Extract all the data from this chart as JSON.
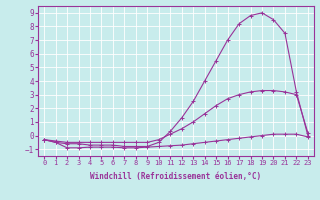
{
  "xlabel": "Windchill (Refroidissement éolien,°C)",
  "bg_color": "#c8ecec",
  "line_color": "#993399",
  "grid_color": "#ffffff",
  "x_values": [
    0,
    1,
    2,
    3,
    4,
    5,
    6,
    7,
    8,
    9,
    10,
    11,
    12,
    13,
    14,
    15,
    16,
    17,
    18,
    19,
    20,
    21,
    22,
    23
  ],
  "line1": [
    -0.3,
    -0.5,
    -0.9,
    -0.9,
    -0.85,
    -0.85,
    -0.85,
    -0.9,
    -0.9,
    -0.85,
    -0.8,
    -0.75,
    -0.7,
    -0.6,
    -0.5,
    -0.4,
    -0.3,
    -0.2,
    -0.1,
    0.0,
    0.1,
    0.1,
    0.1,
    -0.1
  ],
  "line2": [
    -0.3,
    -0.4,
    -0.5,
    -0.5,
    -0.5,
    -0.5,
    -0.5,
    -0.5,
    -0.5,
    -0.5,
    -0.3,
    0.1,
    0.5,
    1.0,
    1.6,
    2.2,
    2.7,
    3.0,
    3.2,
    3.3,
    3.3,
    3.2,
    3.0,
    0.2
  ],
  "line3": [
    -0.3,
    -0.5,
    -0.6,
    -0.6,
    -0.7,
    -0.7,
    -0.7,
    -0.8,
    -0.8,
    -0.8,
    -0.5,
    0.3,
    1.3,
    2.5,
    4.0,
    5.5,
    7.0,
    8.2,
    8.8,
    9.0,
    8.5,
    7.5,
    3.2,
    0.0
  ],
  "ylim": [
    -1.5,
    9.5
  ],
  "xlim": [
    -0.5,
    23.5
  ],
  "yticks": [
    -1,
    0,
    1,
    2,
    3,
    4,
    5,
    6,
    7,
    8,
    9
  ],
  "xticks": [
    0,
    1,
    2,
    3,
    4,
    5,
    6,
    7,
    8,
    9,
    10,
    11,
    12,
    13,
    14,
    15,
    16,
    17,
    18,
    19,
    20,
    21,
    22,
    23
  ],
  "lw": 0.8,
  "marker_size": 2.5,
  "xlabel_fontsize": 5.5,
  "tick_fontsize": 5.0
}
